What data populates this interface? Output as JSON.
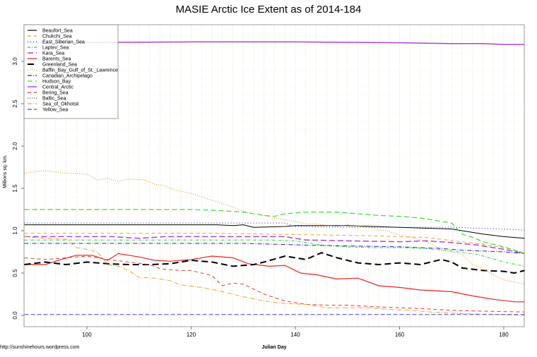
{
  "chart_data": {
    "type": "line",
    "title": "MASIE Arctic Ice Extent as of 2014-184",
    "xlabel": "Julian Day",
    "ylabel": "Millions sq. km.",
    "xlim": [
      88,
      184
    ],
    "ylim": [
      -0.1,
      3.45
    ],
    "x_ticks": [
      100,
      120,
      140,
      160,
      180
    ],
    "y_ticks": [
      "0.0",
      "0.5",
      "1.0",
      "1.5",
      "2.0",
      "2.5",
      "3.0"
    ],
    "grid": true,
    "legend_position": "top-left",
    "credit": "http://sunshinehours.wordpress.com",
    "series": [
      {
        "name": "Beaufort_Sea",
        "color": "#000000",
        "dash": "",
        "width": 1,
        "points": [
          [
            88,
            1.07
          ],
          [
            110,
            1.07
          ],
          [
            125,
            1.07
          ],
          [
            128,
            1.06
          ],
          [
            130,
            1.07
          ],
          [
            132,
            1.04
          ],
          [
            138,
            1.05
          ],
          [
            140,
            1.06
          ],
          [
            150,
            1.06
          ],
          [
            155,
            1.05
          ],
          [
            160,
            1.04
          ],
          [
            165,
            1.03
          ],
          [
            170,
            1.02
          ],
          [
            172,
            1.0
          ],
          [
            176,
            0.96
          ],
          [
            180,
            0.93
          ],
          [
            184,
            0.91
          ]
        ]
      },
      {
        "name": "Chukchi_Sea",
        "color": "#f0a030",
        "dash": "5,4",
        "width": 1,
        "points": [
          [
            88,
            0.97
          ],
          [
            110,
            0.97
          ],
          [
            125,
            0.97
          ],
          [
            135,
            0.96
          ],
          [
            145,
            0.95
          ],
          [
            155,
            0.94
          ],
          [
            165,
            0.92
          ],
          [
            172,
            0.87
          ],
          [
            176,
            0.84
          ],
          [
            180,
            0.8
          ],
          [
            184,
            0.74
          ]
        ]
      },
      {
        "name": "East_Siberian_Sea",
        "color": "#3333cc",
        "dash": "1,3",
        "width": 1.2,
        "points": [
          [
            88,
            1.09
          ],
          [
            120,
            1.09
          ],
          [
            130,
            1.09
          ],
          [
            138,
            1.09
          ],
          [
            140,
            1.05
          ],
          [
            150,
            1.04
          ],
          [
            160,
            1.04
          ],
          [
            165,
            1.04
          ],
          [
            170,
            1.04
          ],
          [
            175,
            1.03
          ],
          [
            184,
            1.01
          ]
        ]
      },
      {
        "name": "Laptev_Sea",
        "color": "#33cc33",
        "dash": "4,2,1,2",
        "width": 1,
        "points": [
          [
            88,
            0.89
          ],
          [
            120,
            0.89
          ],
          [
            135,
            0.89
          ],
          [
            140,
            0.88
          ],
          [
            145,
            0.83
          ],
          [
            150,
            0.81
          ],
          [
            155,
            0.8
          ],
          [
            160,
            0.8
          ],
          [
            165,
            0.79
          ],
          [
            170,
            0.76
          ],
          [
            175,
            0.72
          ],
          [
            180,
            0.63
          ],
          [
            184,
            0.58
          ]
        ]
      },
      {
        "name": "Kara_Sea",
        "color": "#aa44dd",
        "dash": "8,4",
        "width": 1.5,
        "points": [
          [
            88,
            0.93
          ],
          [
            105,
            0.93
          ],
          [
            110,
            0.91
          ],
          [
            115,
            0.93
          ],
          [
            130,
            0.93
          ],
          [
            138,
            0.93
          ],
          [
            142,
            0.89
          ],
          [
            150,
            0.88
          ],
          [
            160,
            0.87
          ],
          [
            165,
            0.88
          ],
          [
            170,
            0.86
          ],
          [
            175,
            0.83
          ],
          [
            180,
            0.78
          ],
          [
            184,
            0.73
          ]
        ]
      },
      {
        "name": "Barents_Sea",
        "color": "#ee2222",
        "dash": "",
        "width": 1.2,
        "points": [
          [
            88,
            0.6
          ],
          [
            92,
            0.6
          ],
          [
            95,
            0.66
          ],
          [
            98,
            0.71
          ],
          [
            101,
            0.71
          ],
          [
            104,
            0.65
          ],
          [
            106,
            0.73
          ],
          [
            110,
            0.69
          ],
          [
            113,
            0.65
          ],
          [
            116,
            0.64
          ],
          [
            120,
            0.66
          ],
          [
            124,
            0.7
          ],
          [
            128,
            0.68
          ],
          [
            131,
            0.61
          ],
          [
            135,
            0.58
          ],
          [
            138,
            0.59
          ],
          [
            141,
            0.5
          ],
          [
            144,
            0.48
          ],
          [
            148,
            0.43
          ],
          [
            152,
            0.44
          ],
          [
            156,
            0.35
          ],
          [
            160,
            0.33
          ],
          [
            164,
            0.3
          ],
          [
            170,
            0.28
          ],
          [
            174,
            0.23
          ],
          [
            178,
            0.19
          ],
          [
            182,
            0.16
          ],
          [
            184,
            0.16
          ]
        ]
      },
      {
        "name": "Greenland_Sea",
        "color": "#000000",
        "dash": "9,5",
        "width": 2,
        "points": [
          [
            88,
            0.6
          ],
          [
            92,
            0.63
          ],
          [
            96,
            0.6
          ],
          [
            100,
            0.63
          ],
          [
            104,
            0.61
          ],
          [
            108,
            0.6
          ],
          [
            112,
            0.6
          ],
          [
            116,
            0.61
          ],
          [
            120,
            0.65
          ],
          [
            124,
            0.63
          ],
          [
            128,
            0.58
          ],
          [
            132,
            0.6
          ],
          [
            134,
            0.63
          ],
          [
            138,
            0.7
          ],
          [
            142,
            0.66
          ],
          [
            145,
            0.74
          ],
          [
            148,
            0.68
          ],
          [
            152,
            0.62
          ],
          [
            156,
            0.6
          ],
          [
            160,
            0.62
          ],
          [
            164,
            0.6
          ],
          [
            168,
            0.66
          ],
          [
            170,
            0.63
          ],
          [
            172,
            0.56
          ],
          [
            176,
            0.53
          ],
          [
            180,
            0.52
          ],
          [
            182,
            0.5
          ],
          [
            184,
            0.53
          ]
        ]
      },
      {
        "name": "Baffin_Bay_Gulf_of_St._Lawrence",
        "color": "#f0a030",
        "dash": "1,2",
        "width": 1.2,
        "points": [
          [
            88,
            1.68
          ],
          [
            92,
            1.71
          ],
          [
            96,
            1.68
          ],
          [
            100,
            1.67
          ],
          [
            102,
            1.6
          ],
          [
            104,
            1.62
          ],
          [
            106,
            1.58
          ],
          [
            108,
            1.61
          ],
          [
            111,
            1.6
          ],
          [
            113,
            1.55
          ],
          [
            115,
            1.53
          ],
          [
            117,
            1.48
          ],
          [
            120,
            1.44
          ],
          [
            122,
            1.4
          ],
          [
            124,
            1.36
          ],
          [
            126,
            1.32
          ],
          [
            128,
            1.28
          ],
          [
            130,
            1.23
          ],
          [
            132,
            1.2
          ],
          [
            134,
            1.18
          ],
          [
            136,
            1.15
          ],
          [
            138,
            1.13
          ],
          [
            140,
            1.11
          ],
          [
            142,
            1.08
          ],
          [
            144,
            1.08
          ],
          [
            148,
            1.05
          ],
          [
            150,
            1.07
          ],
          [
            154,
            1.04
          ],
          [
            158,
            0.99
          ],
          [
            160,
            0.95
          ],
          [
            162,
            0.93
          ],
          [
            164,
            0.89
          ],
          [
            166,
            0.85
          ],
          [
            168,
            0.77
          ],
          [
            170,
            0.75
          ],
          [
            172,
            0.72
          ],
          [
            174,
            0.6
          ],
          [
            176,
            0.55
          ],
          [
            178,
            0.48
          ],
          [
            180,
            0.42
          ],
          [
            184,
            0.37
          ]
        ]
      },
      {
        "name": "Canadian_Archipelago",
        "color": "#2222cc",
        "dash": "6,2,1,2",
        "width": 1,
        "points": [
          [
            88,
            0.85
          ],
          [
            120,
            0.85
          ],
          [
            130,
            0.85
          ],
          [
            136,
            0.84
          ],
          [
            142,
            0.83
          ],
          [
            150,
            0.82
          ],
          [
            160,
            0.81
          ],
          [
            168,
            0.79
          ],
          [
            172,
            0.77
          ],
          [
            176,
            0.76
          ],
          [
            180,
            0.75
          ],
          [
            184,
            0.73
          ]
        ]
      },
      {
        "name": "Hudson_Bay",
        "color": "#33dd33",
        "dash": "7,4",
        "width": 1.2,
        "points": [
          [
            88,
            1.25
          ],
          [
            120,
            1.25
          ],
          [
            125,
            1.24
          ],
          [
            130,
            1.22
          ],
          [
            134,
            1.18
          ],
          [
            136,
            1.17
          ],
          [
            138,
            1.2
          ],
          [
            142,
            1.22
          ],
          [
            148,
            1.22
          ],
          [
            152,
            1.2
          ],
          [
            156,
            1.18
          ],
          [
            160,
            1.17
          ],
          [
            164,
            1.15
          ],
          [
            166,
            1.13
          ],
          [
            168,
            1.11
          ],
          [
            170,
            1.09
          ],
          [
            172,
            0.96
          ],
          [
            174,
            0.92
          ],
          [
            176,
            0.87
          ],
          [
            178,
            0.84
          ],
          [
            180,
            0.81
          ],
          [
            184,
            0.73
          ]
        ]
      },
      {
        "name": "Central_Arctic",
        "color": "#aa44dd",
        "dash": "",
        "width": 1.5,
        "points": [
          [
            88,
            3.22
          ],
          [
            120,
            3.23
          ],
          [
            140,
            3.23
          ],
          [
            160,
            3.22
          ],
          [
            170,
            3.21
          ],
          [
            176,
            3.21
          ],
          [
            180,
            3.2
          ],
          [
            184,
            3.2
          ]
        ]
      },
      {
        "name": "Bering_Sea",
        "color": "#ee3333",
        "dash": "5,4",
        "width": 1,
        "points": [
          [
            88,
            0.68
          ],
          [
            92,
            0.66
          ],
          [
            96,
            0.68
          ],
          [
            100,
            0.7
          ],
          [
            104,
            0.66
          ],
          [
            108,
            0.63
          ],
          [
            112,
            0.6
          ],
          [
            114,
            0.55
          ],
          [
            118,
            0.53
          ],
          [
            120,
            0.53
          ],
          [
            124,
            0.47
          ],
          [
            126,
            0.35
          ],
          [
            128,
            0.38
          ],
          [
            130,
            0.37
          ],
          [
            134,
            0.25
          ],
          [
            138,
            0.17
          ],
          [
            142,
            0.13
          ],
          [
            146,
            0.12
          ],
          [
            150,
            0.12
          ],
          [
            156,
            0.1
          ],
          [
            160,
            0.09
          ],
          [
            164,
            0.08
          ],
          [
            170,
            0.06
          ],
          [
            176,
            0.05
          ],
          [
            184,
            0.04
          ]
        ]
      },
      {
        "name": "Baltic_Sea",
        "color": "#333333",
        "dash": "1,2",
        "width": 1,
        "points": []
      },
      {
        "name": "Sea_of_Okhotsk",
        "color": "#f0a030",
        "dash": "6,2,1,2",
        "width": 1,
        "points": [
          [
            88,
            0.93
          ],
          [
            92,
            0.91
          ],
          [
            96,
            0.9
          ],
          [
            98,
            0.8
          ],
          [
            100,
            0.78
          ],
          [
            102,
            0.75
          ],
          [
            104,
            0.6
          ],
          [
            106,
            0.58
          ],
          [
            108,
            0.53
          ],
          [
            110,
            0.45
          ],
          [
            113,
            0.44
          ],
          [
            116,
            0.41
          ],
          [
            118,
            0.36
          ],
          [
            122,
            0.33
          ],
          [
            126,
            0.28
          ],
          [
            130,
            0.22
          ],
          [
            134,
            0.17
          ],
          [
            138,
            0.14
          ],
          [
            142,
            0.13
          ],
          [
            146,
            0.09
          ],
          [
            150,
            0.09
          ],
          [
            154,
            0.09
          ],
          [
            158,
            0.07
          ],
          [
            162,
            0.06
          ],
          [
            166,
            0.04
          ],
          [
            172,
            0.02
          ],
          [
            178,
            0.01
          ],
          [
            184,
            0.0
          ]
        ]
      },
      {
        "name": "Yellow_Sea",
        "color": "#4444ee",
        "dash": "6,3",
        "width": 1,
        "points": [
          [
            88,
            0.01
          ],
          [
            184,
            0.01
          ]
        ]
      }
    ]
  },
  "chart": {
    "title": "MASIE Arctic Ice Extent as of 2014-184",
    "xlabel": "Julian Day",
    "ylabel": "Millions sq. km.",
    "credit": "http://sunshinehours.wordpress.com"
  }
}
